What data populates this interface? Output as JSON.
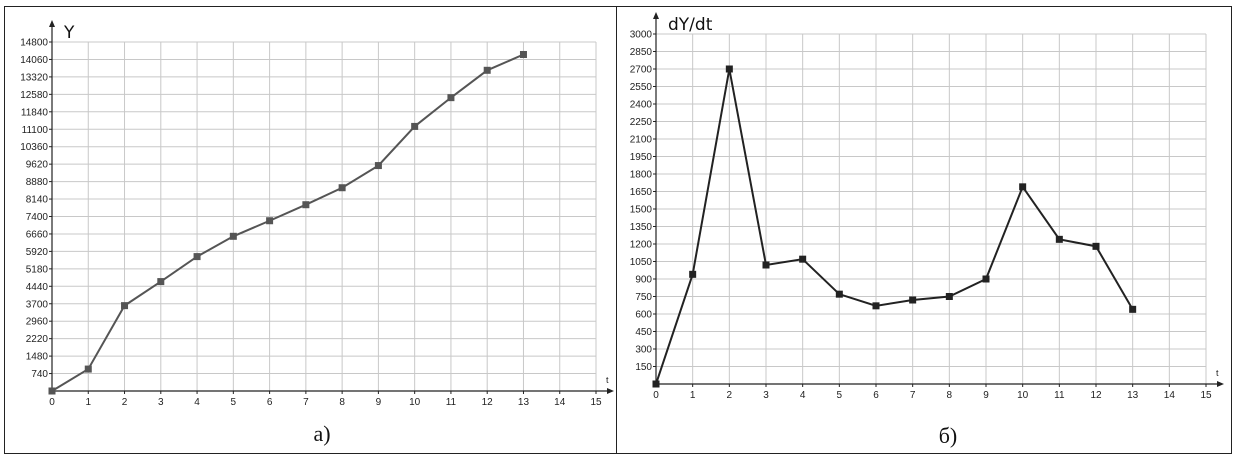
{
  "chart_data": [
    {
      "type": "line",
      "title": "",
      "caption": "а)",
      "ylabel": "Y",
      "xlabel": "t",
      "xlim": [
        0,
        15
      ],
      "ylim": [
        0,
        14800
      ],
      "yticks": [
        740,
        1480,
        2220,
        2960,
        3700,
        4440,
        5180,
        5920,
        6660,
        7400,
        8140,
        8880,
        9620,
        10360,
        11100,
        11840,
        12580,
        13320,
        14060,
        14800
      ],
      "xticks": [
        0,
        1,
        2,
        3,
        4,
        5,
        6,
        7,
        8,
        9,
        10,
        11,
        12,
        13,
        14,
        15
      ],
      "grid": true,
      "series": [
        {
          "x": [
            0,
            1,
            2,
            3,
            4,
            5,
            6,
            7,
            8,
            9,
            10,
            11,
            12,
            13
          ],
          "values": [
            0,
            930,
            3620,
            4640,
            5700,
            6560,
            7220,
            7900,
            8620,
            9560,
            11220,
            12440,
            13600,
            14270
          ],
          "color": "#555555"
        }
      ]
    },
    {
      "type": "line",
      "title": "",
      "caption": "б)",
      "ylabel": "dY/dt",
      "xlabel": "t",
      "xlim": [
        0,
        15
      ],
      "ylim": [
        0,
        3000
      ],
      "yticks": [
        150,
        300,
        450,
        600,
        750,
        900,
        1050,
        1200,
        1350,
        1500,
        1650,
        1800,
        1950,
        2100,
        2250,
        2400,
        2550,
        2700,
        2850,
        3000
      ],
      "xticks": [
        0,
        1,
        2,
        3,
        4,
        5,
        6,
        7,
        8,
        9,
        10,
        11,
        12,
        13,
        14,
        15
      ],
      "grid": true,
      "series": [
        {
          "x": [
            0,
            1,
            2,
            3,
            4,
            5,
            6,
            7,
            8,
            9,
            10,
            11,
            12,
            13
          ],
          "values": [
            0,
            940,
            2700,
            1020,
            1070,
            770,
            670,
            720,
            750,
            900,
            1690,
            1240,
            1180,
            640
          ],
          "color": "#222222"
        }
      ]
    }
  ]
}
